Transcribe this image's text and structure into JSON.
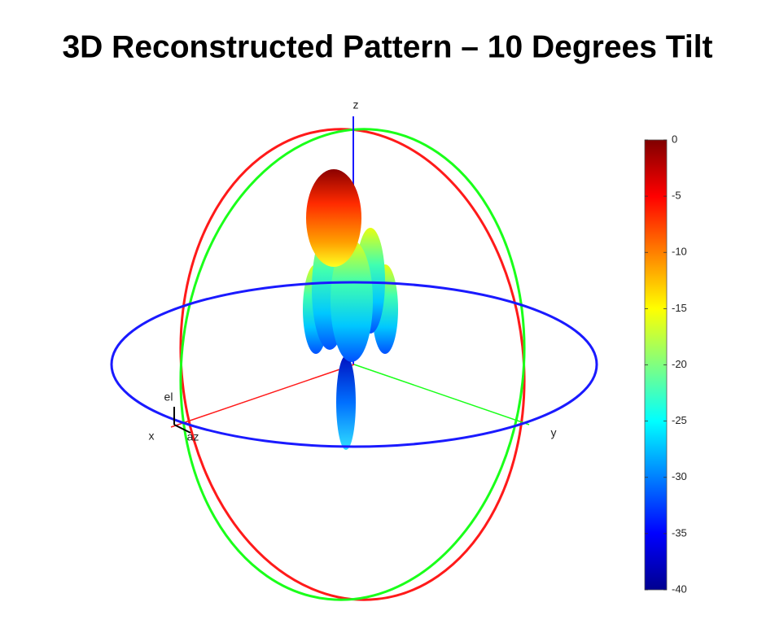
{
  "chart_data": {
    "type": "radiation-pattern-3d",
    "title": "3D Reconstructed Pattern – 10 Degrees Tilt",
    "axis_labels": {
      "x": "x",
      "y": "y",
      "z": "z",
      "el": "el",
      "az": "az"
    },
    "colorbar": {
      "clim": [
        -40,
        0
      ],
      "ticks": [
        0,
        -5,
        -10,
        -15,
        -20,
        -25,
        -30,
        -35,
        -40
      ],
      "colormap": "jet"
    }
  }
}
